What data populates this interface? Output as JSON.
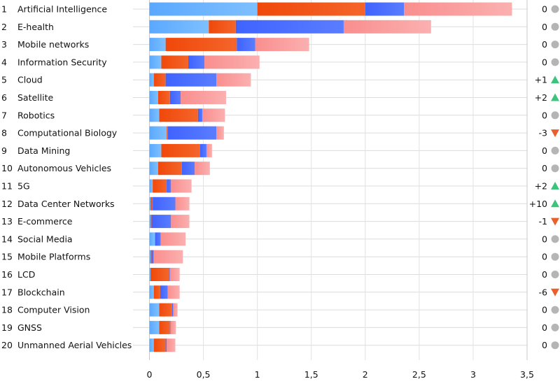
{
  "chart_data": {
    "type": "bar",
    "orientation": "horizontal",
    "stacked": true,
    "title": "",
    "xlabel": "",
    "ylabel": "",
    "xlim": [
      0,
      3.5
    ],
    "x_ticks": [
      "0",
      "0,5",
      "1",
      "1,5",
      "2",
      "2,5",
      "3",
      "3,5"
    ],
    "x_tick_values": [
      0,
      0.5,
      1,
      1.5,
      2,
      2.5,
      3,
      3.5
    ],
    "grid": true,
    "colors": [
      "#5aa8ff",
      "#f0480a",
      "#3f63ff",
      "#fa8e8e"
    ],
    "categories": [
      "Artificial Intelligence",
      "E-health",
      "Mobile networks",
      "Information Security",
      "Cloud",
      "Satellite",
      "Robotics",
      "Computational Biology",
      "Data Mining",
      "Autonomous Vehicles",
      "5G",
      "Data Center Networks",
      "E-commerce",
      "Social Media",
      "Mobile Platforms",
      "LCD",
      "Blockchain",
      "Computer Vision",
      "GNSS",
      "Unmanned Aerial Vehicles"
    ],
    "ranks": [
      "1",
      "2",
      "3",
      "4",
      "5",
      "6",
      "7",
      "8",
      "9",
      "10",
      "11",
      "12",
      "13",
      "14",
      "15",
      "16",
      "17",
      "18",
      "19",
      "20"
    ],
    "series": [
      {
        "values": [
          1.0,
          0.55,
          0.15,
          0.11,
          0.04,
          0.08,
          0.09,
          0.16,
          0.11,
          0.08,
          0.03,
          0.01,
          0.01,
          0.05,
          0.01,
          0.01,
          0.04,
          0.09,
          0.09,
          0.04
        ]
      },
      {
        "values": [
          1.0,
          0.25,
          0.66,
          0.25,
          0.11,
          0.11,
          0.36,
          0.01,
          0.36,
          0.22,
          0.13,
          0.02,
          0.01,
          0.005,
          0.01,
          0.17,
          0.06,
          0.12,
          0.1,
          0.11
        ]
      },
      {
        "values": [
          0.36,
          1.0,
          0.17,
          0.15,
          0.47,
          0.1,
          0.04,
          0.45,
          0.06,
          0.12,
          0.04,
          0.21,
          0.18,
          0.05,
          0.02,
          0.01,
          0.07,
          0.01,
          0.005,
          0.01
        ]
      },
      {
        "values": [
          1.0,
          0.81,
          0.5,
          0.51,
          0.32,
          0.42,
          0.21,
          0.07,
          0.05,
          0.14,
          0.19,
          0.13,
          0.17,
          0.23,
          0.27,
          0.09,
          0.11,
          0.04,
          0.05,
          0.08
        ]
      }
    ],
    "rank_changes": [
      {
        "text": "0",
        "trend": "same"
      },
      {
        "text": "0",
        "trend": "same"
      },
      {
        "text": "0",
        "trend": "same"
      },
      {
        "text": "0",
        "trend": "same"
      },
      {
        "text": "+1",
        "trend": "up"
      },
      {
        "text": "+2",
        "trend": "up"
      },
      {
        "text": "0",
        "trend": "same"
      },
      {
        "text": "-3",
        "trend": "down"
      },
      {
        "text": "0",
        "trend": "same"
      },
      {
        "text": "0",
        "trend": "same"
      },
      {
        "text": "+2",
        "trend": "up"
      },
      {
        "text": "+10",
        "trend": "up"
      },
      {
        "text": "-1",
        "trend": "down"
      },
      {
        "text": "0",
        "trend": "same"
      },
      {
        "text": "0",
        "trend": "same"
      },
      {
        "text": "0",
        "trend": "same"
      },
      {
        "text": "-6",
        "trend": "down"
      },
      {
        "text": "0",
        "trend": "same"
      },
      {
        "text": "0",
        "trend": "same"
      },
      {
        "text": "0",
        "trend": "same"
      }
    ],
    "trend_colors": {
      "up": "#3cc47c",
      "down": "#e8602c",
      "same": "#b5b5b5"
    }
  }
}
